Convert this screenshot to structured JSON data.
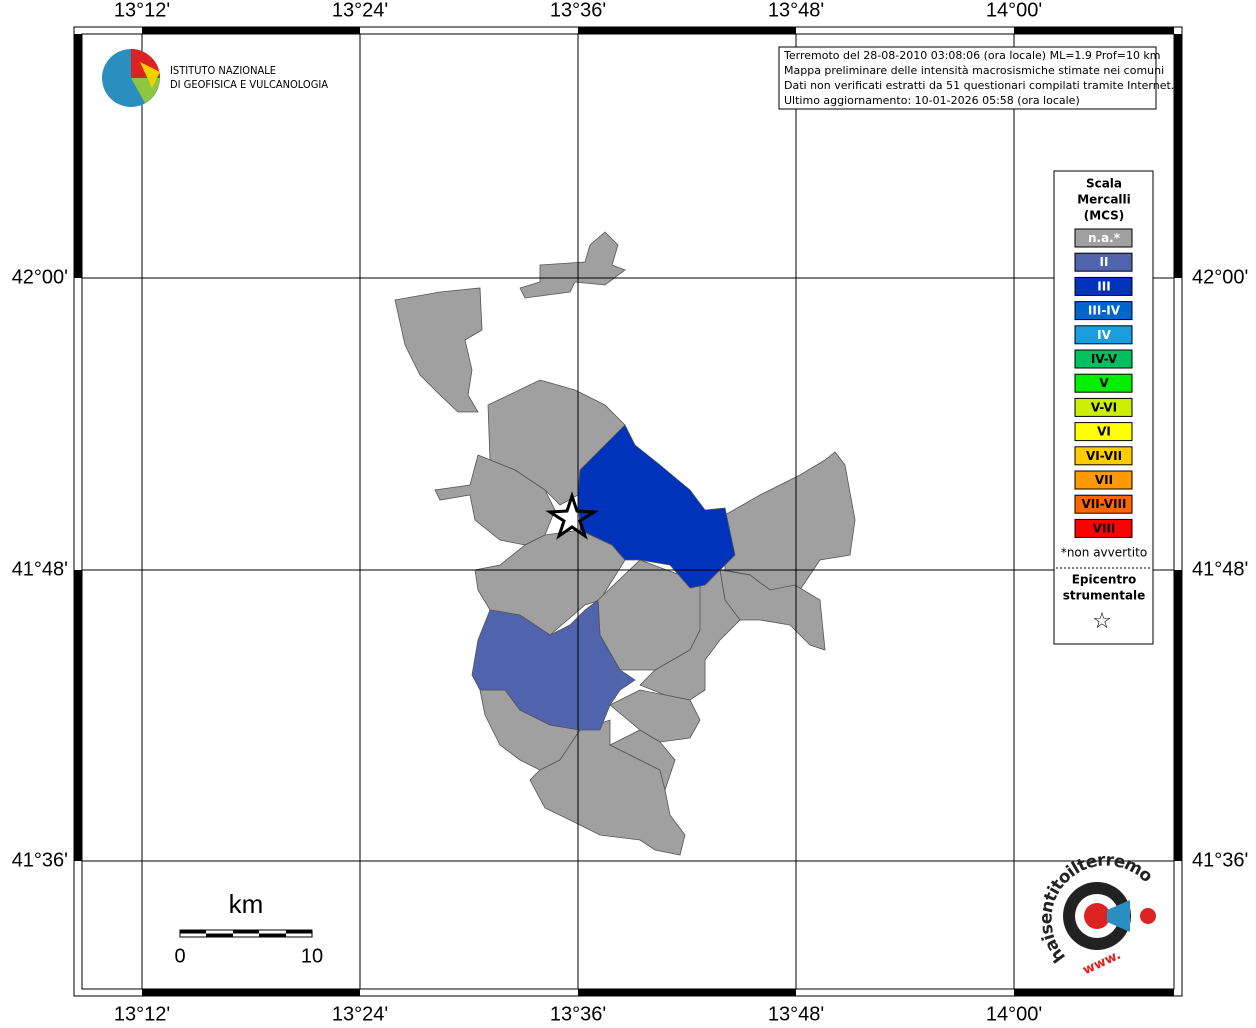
{
  "map": {
    "lon_labels": [
      "13°12'",
      "13°24'",
      "13°36'",
      "13°48'",
      "14°00'"
    ],
    "lat_labels": [
      "42°00'",
      "41°48'",
      "41°36'"
    ]
  },
  "header": {
    "institute": [
      "ISTITUTO NAZIONALE",
      "DI GEOFISICA E VULCANOLOGIA"
    ]
  },
  "info": [
    "Terremoto del 28-08-2010 03:08:06 (ora locale) ML=1.9 Prof=10 km",
    "Mappa preliminare delle intensità macrosismiche stimate nei comuni",
    "Dati non verificati estratti da 51 questionari compilati tramite Internet.",
    "Ultimo aggiornamento: 10-01-2026 05:58 (ora locale)"
  ],
  "legend": {
    "title": [
      "Scala",
      "Mercalli",
      "(MCS)"
    ],
    "items": [
      {
        "label": "n.a.*",
        "color": "#a0a0a0",
        "text_color": "#ffffff"
      },
      {
        "label": "II",
        "color": "#4f64ad",
        "text_color": "#ffffff"
      },
      {
        "label": "III",
        "color": "#0033bb",
        "text_color": "#ffffff"
      },
      {
        "label": "III-IV",
        "color": "#0066cc",
        "text_color": "#ffffff"
      },
      {
        "label": "IV",
        "color": "#1a9ee0",
        "text_color": "#ffffff"
      },
      {
        "label": "IV-V",
        "color": "#00c060",
        "text_color": "#000000"
      },
      {
        "label": "V",
        "color": "#00ee00",
        "text_color": "#000000"
      },
      {
        "label": "V-VI",
        "color": "#ccee00",
        "text_color": "#000000"
      },
      {
        "label": "VI",
        "color": "#ffff00",
        "text_color": "#000000"
      },
      {
        "label": "VI-VII",
        "color": "#ffcc00",
        "text_color": "#000000"
      },
      {
        "label": "VII",
        "color": "#ff9900",
        "text_color": "#000000"
      },
      {
        "label": "VII-VIII",
        "color": "#ff6600",
        "text_color": "#000000"
      },
      {
        "label": "VIII",
        "color": "#ff0000",
        "text_color": "#000000"
      }
    ],
    "note": "*non avvertito",
    "epicenter": [
      "Epicentro",
      "strumentale"
    ],
    "star": "☆"
  },
  "scale": {
    "unit": "km",
    "ticks": [
      "0",
      "10"
    ]
  },
  "logo": {
    "text": "haisentitoilterremoto.it",
    "www": "www."
  }
}
